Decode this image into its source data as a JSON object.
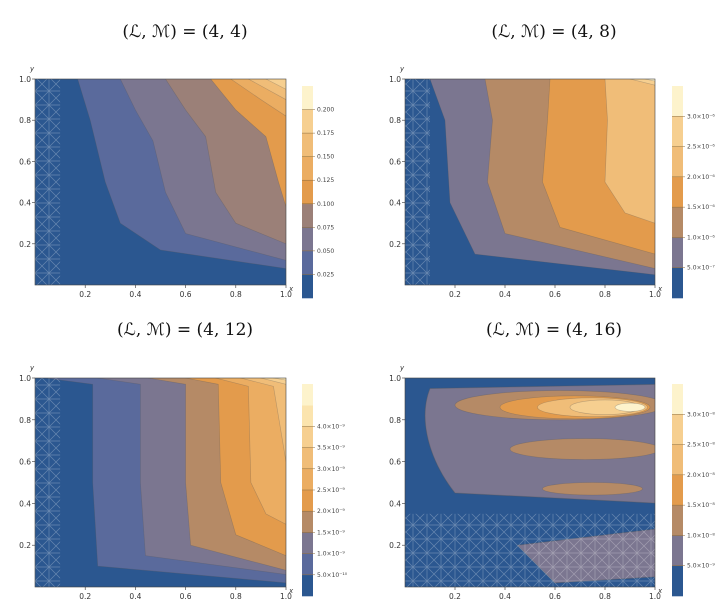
{
  "chart_data": [
    {
      "type": "contour",
      "title": "(ℒ, ℳ) = (4, 4)",
      "xlabel": "x",
      "ylabel": "y",
      "xlim": [
        0,
        1
      ],
      "ylim": [
        0,
        1
      ],
      "x_ticks": [
        "0.2",
        "0.4",
        "0.6",
        "0.8",
        "1.0"
      ],
      "y_ticks": [
        "0.2",
        "0.4",
        "0.6",
        "0.8",
        "1.0"
      ],
      "legend_labels": [
        "0.025",
        "0.050",
        "0.075",
        "0.100",
        "0.125",
        "0.150",
        "0.175",
        "0.200"
      ],
      "levels": [
        0.025,
        0.05,
        0.075,
        0.1,
        0.125,
        0.15,
        0.175,
        0.2
      ]
    },
    {
      "type": "contour",
      "title": "(ℒ, ℳ) = (4, 8)",
      "xlabel": "x",
      "ylabel": "y",
      "xlim": [
        0,
        1
      ],
      "ylim": [
        0,
        1
      ],
      "x_ticks": [
        "0.2",
        "0.4",
        "0.6",
        "0.8",
        "1.0"
      ],
      "y_ticks": [
        "0.2",
        "0.4",
        "0.6",
        "0.8",
        "1.0"
      ],
      "legend_labels": [
        "5.0×10⁻⁷",
        "1.0×10⁻⁶",
        "1.5×10⁻⁶",
        "2.0×10⁻⁶",
        "2.5×10⁻⁶",
        "3.0×10⁻⁶"
      ],
      "levels": [
        5e-07,
        1e-06,
        1.5e-06,
        2e-06,
        2.5e-06,
        3e-06
      ]
    },
    {
      "type": "contour",
      "title": "(ℒ, ℳ) = (4, 12)",
      "xlabel": "x",
      "ylabel": "y",
      "xlim": [
        0,
        1
      ],
      "ylim": [
        0,
        1
      ],
      "x_ticks": [
        "0.2",
        "0.4",
        "0.6",
        "0.8",
        "1.0"
      ],
      "y_ticks": [
        "0.2",
        "0.4",
        "0.6",
        "0.8",
        "1.0"
      ],
      "legend_labels": [
        "5.0×10⁻¹⁰",
        "1.0×10⁻⁹",
        "1.5×10⁻⁹",
        "2.0×10⁻⁹",
        "2.5×10⁻⁹",
        "3.0×10⁻⁹",
        "3.5×10⁻⁹",
        "4.0×10⁻⁹"
      ],
      "levels": [
        5e-10,
        1e-09,
        1.5e-09,
        2e-09,
        2.5e-09,
        3e-09,
        3.5e-09,
        4e-09
      ]
    },
    {
      "type": "contour",
      "title": "(ℒ, ℳ) = (4, 16)",
      "xlabel": "x",
      "ylabel": "y",
      "xlim": [
        0,
        1
      ],
      "ylim": [
        0,
        1
      ],
      "x_ticks": [
        "0.2",
        "0.4",
        "0.6",
        "0.8",
        "1.0"
      ],
      "y_ticks": [
        "0.2",
        "0.4",
        "0.6",
        "0.8",
        "1.0"
      ],
      "legend_labels": [
        "5.0×10⁻⁹",
        "1.0×10⁻⁸",
        "1.5×10⁻⁸",
        "2.0×10⁻⁸",
        "2.5×10⁻⁸",
        "3.0×10⁻⁸"
      ],
      "levels": [
        5e-09,
        1e-08,
        1.5e-08,
        2e-08,
        2.5e-08,
        3e-08
      ]
    }
  ],
  "colors": [
    "#2b5790",
    "#5a6a9c",
    "#7b7690",
    "#9b8078",
    "#b58a66",
    "#e39b4c",
    "#ebad62",
    "#f0bd78",
    "#f6cf90",
    "#fbe4ae",
    "#fdf3cc"
  ]
}
